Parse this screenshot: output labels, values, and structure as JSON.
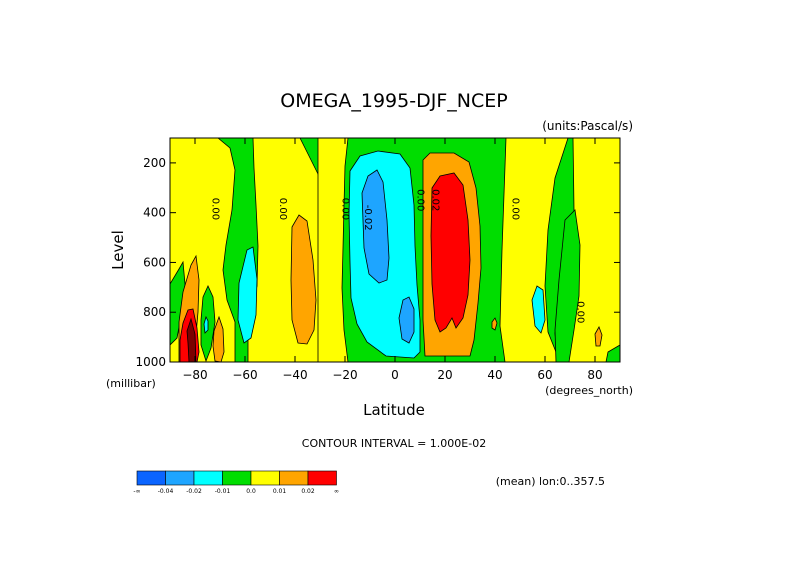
{
  "chart_data": {
    "type": "contour",
    "title": "OMEGA_1995-DJF_NCEP",
    "units": "(units:Pascal/s)",
    "xlabel": "Latitude",
    "ylabel": "Level",
    "x_units": "(degrees_north)",
    "y_units": "(millibar)",
    "xlim": [
      -90,
      90
    ],
    "ylim": [
      1000,
      100
    ],
    "x_ticks": [
      -80,
      -60,
      -40,
      -20,
      0,
      20,
      40,
      60,
      80
    ],
    "x_tick_labels": [
      "−80",
      "−60",
      "−40",
      "−20",
      "0",
      "20",
      "40",
      "60",
      "80"
    ],
    "y_ticks": [
      200,
      400,
      600,
      800,
      1000
    ],
    "y_tick_labels": [
      "200",
      "400",
      "600",
      "800",
      "1000"
    ],
    "contour_interval": "CONTOUR INTERVAL = 1.000E-02",
    "mean_note": "(mean) lon:0..357.5",
    "contour_labels": [
      {
        "text": "0.00",
        "lat": -73,
        "level": 385
      },
      {
        "text": "0.00",
        "lat": -46,
        "level": 385
      },
      {
        "text": "0.00",
        "lat": -21,
        "level": 385
      },
      {
        "text": "-0.02",
        "lat": -12,
        "level": 420
      },
      {
        "text": "0.00",
        "lat": 9,
        "level": 350
      },
      {
        "text": "0.02",
        "lat": 15,
        "level": 350
      },
      {
        "text": "0.00",
        "lat": 47,
        "level": 385
      },
      {
        "text": "0.00",
        "lat": 73,
        "level": 800
      }
    ],
    "legend": {
      "colors": [
        "#0a64ff",
        "#1ea5ff",
        "#00ffff",
        "#00dd00",
        "#ffff00",
        "#ffa500",
        "#ff0000"
      ],
      "labels": [
        "-∞",
        "-0.04",
        "-0.02",
        "-0.01",
        "0.0",
        "0.01",
        "0.02",
        "∞"
      ]
    },
    "field_levels": {
      "colors": {
        "blue": "#0a64ff",
        "lightblue": "#1ea5ff",
        "cyan": "#00ffff",
        "green": "#00dd00",
        "yellow": "#ffff00",
        "orange": "#ffa500",
        "red": "#ff0000",
        "darkred": "#7a0000"
      }
    }
  }
}
